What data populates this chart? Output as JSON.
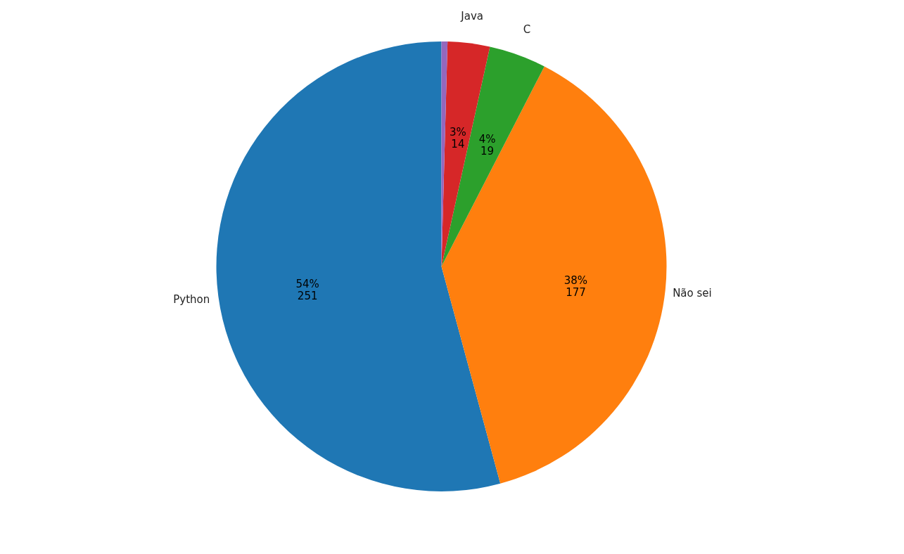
{
  "chart_data": {
    "type": "pie",
    "categories": [
      "Python",
      "Não sei",
      "C",
      "Java",
      null
    ],
    "values": [
      251,
      177,
      19,
      14,
      2
    ],
    "colors": [
      "#1f77b4",
      "#ff7f0e",
      "#2ca02c",
      "#d62728",
      "#9467bd"
    ],
    "value_labels": [
      "54%\n251",
      "38%\n177",
      "4%\n19",
      "3%\n14",
      null
    ],
    "legend": false
  }
}
